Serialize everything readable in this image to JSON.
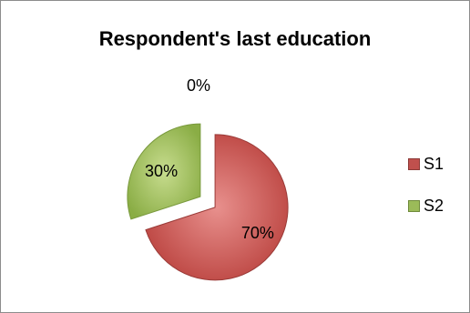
{
  "chart_data": {
    "type": "pie",
    "title": "Respondent's last education",
    "categories": [
      "S1",
      "S2",
      ""
    ],
    "values": [
      70,
      30,
      0
    ],
    "data_labels": [
      "70%",
      "30%",
      "0%"
    ],
    "exploded": true,
    "legend": {
      "position": "right",
      "entries": [
        "S1",
        "S2"
      ]
    },
    "colors": [
      "#c0504d",
      "#9bbb59"
    ]
  }
}
